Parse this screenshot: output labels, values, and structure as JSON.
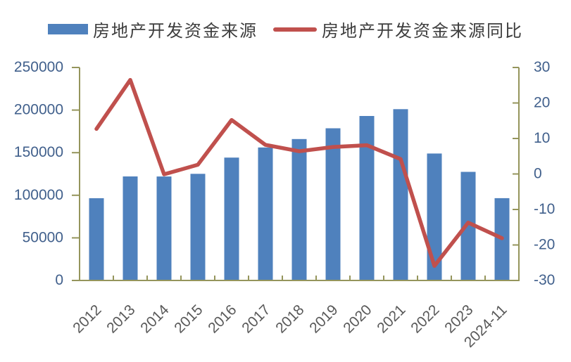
{
  "legend": {
    "items": [
      {
        "label": "房地产开发资金来源",
        "marker": "rect",
        "color": "#4F81BD"
      },
      {
        "label": "房地产开发资金来源同比",
        "marker": "line",
        "color": "#C0504D"
      }
    ]
  },
  "chart_data": {
    "type": "bar",
    "title": "",
    "categories": [
      "2012",
      "2013",
      "2014",
      "2015",
      "2016",
      "2017",
      "2018",
      "2019",
      "2020",
      "2021",
      "2022",
      "2023",
      "2024-11"
    ],
    "series": [
      {
        "name": "房地产开发资金来源",
        "type": "bar",
        "axis": "left",
        "color": "#4F81BD",
        "values": [
          96500,
          122100,
          122000,
          125200,
          144200,
          156100,
          166000,
          178600,
          193100,
          201100,
          149000,
          127500,
          96600
        ]
      },
      {
        "name": "房地产开发资金来源同比",
        "type": "line",
        "axis": "right",
        "color": "#C0504D",
        "values": [
          12.7,
          26.5,
          -0.1,
          2.6,
          15.2,
          8.2,
          6.4,
          7.6,
          8.1,
          4.2,
          -25.9,
          -13.7,
          -18.1
        ]
      }
    ],
    "left_axis": {
      "min": 0,
      "max": 250000,
      "step": 50000,
      "tick_labels": [
        "0",
        "50000",
        "100000",
        "150000",
        "200000",
        "250000"
      ]
    },
    "right_axis": {
      "min": -30,
      "max": 30,
      "step": 10,
      "tick_labels": [
        "-30",
        "-20",
        "-10",
        "0",
        "10",
        "20",
        "30"
      ]
    },
    "legend_position": "top",
    "grid": false
  },
  "colors": {
    "bar": "#4F81BD",
    "line": "#C0504D",
    "axis_frame": "#95955C",
    "axis_tick_label": "#41608C",
    "x_tick_label": "#595959",
    "legend_text": "#3D3D3D",
    "background": "#FFFFFF"
  }
}
